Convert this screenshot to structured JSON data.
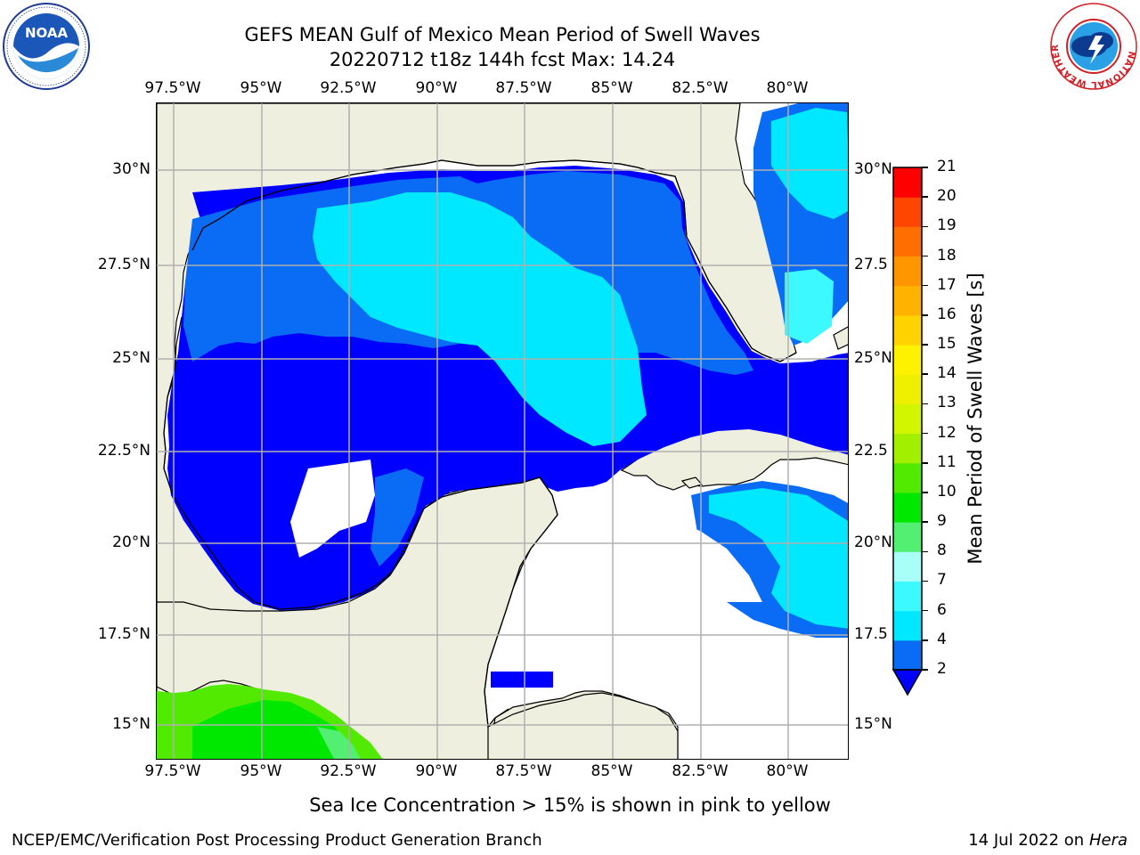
{
  "header": {
    "title_line1": "GEFS MEAN Gulf of Mexico Mean Period of Swell Waves",
    "title_line2": "20220712 t18z 144h fcst   Max: 14.24"
  },
  "logos": {
    "left": {
      "name": "noaa-logo",
      "text": "NOAA",
      "ring_text": "NATIONAL OCEANIC AND ATMOSPHERIC ADMINISTRATION · U.S. DEPARTMENT OF COMMERCE"
    },
    "right": {
      "name": "nws-logo",
      "ring_text": "NATIONAL WEATHER SERVICE"
    }
  },
  "map": {
    "lon_labels": [
      "97.5°W",
      "95°W",
      "92.5°W",
      "90°W",
      "87.5°W",
      "85°W",
      "82.5°W",
      "80°W"
    ],
    "lon_values": [
      -97.5,
      -95,
      -92.5,
      -90,
      -87.5,
      -85,
      -82.5,
      -80
    ],
    "lat_labels_left": [
      "30°N",
      "27.5°N",
      "25°N",
      "22.5°N",
      "20°N",
      "17.5°N",
      "15°N"
    ],
    "lat_labels_right": [
      "30°N",
      "27.5",
      "25°N",
      "22.5",
      "20°N",
      "17.5",
      "15°N"
    ],
    "lat_values": [
      30,
      27.5,
      25,
      22.5,
      20,
      17.5,
      15
    ],
    "extent": {
      "lon_min": -98,
      "lon_max": -78.3,
      "lat_min": 14,
      "lat_max": 31.8
    },
    "grid": true,
    "colors": {
      "land": "#efefdf",
      "ocean_nodata": "#ffffff",
      "gridline": "#b0b0b0",
      "coast": "#000000"
    }
  },
  "colorbar": {
    "label": "Mean Period of Swell Waves [s]",
    "ticks": [
      "2",
      "4",
      "6",
      "7",
      "8",
      "9",
      "10",
      "11",
      "12",
      "13",
      "14",
      "15",
      "16",
      "17",
      "18",
      "19",
      "20",
      "21"
    ],
    "colors": [
      "#0a6cf5",
      "#00e8ff",
      "#3cf8ff",
      "#a8fff8",
      "#53ef73",
      "#00e800",
      "#52ea00",
      "#a3ef00",
      "#d2f500",
      "#efef00",
      "#fff200",
      "#ffd200",
      "#ffb200",
      "#ff9600",
      "#ff6e00",
      "#ff4600",
      "#ff0000"
    ],
    "under_color": "#0000ff",
    "extend": "min"
  },
  "footer": {
    "note": "Sea Ice Concentration > 15% is shown in pink to yellow",
    "credit": "NCEP/EMC/Verification Post Processing Product Generation Branch",
    "date_prefix": "14 Jul 2022 on ",
    "date_machine": "Hera"
  }
}
